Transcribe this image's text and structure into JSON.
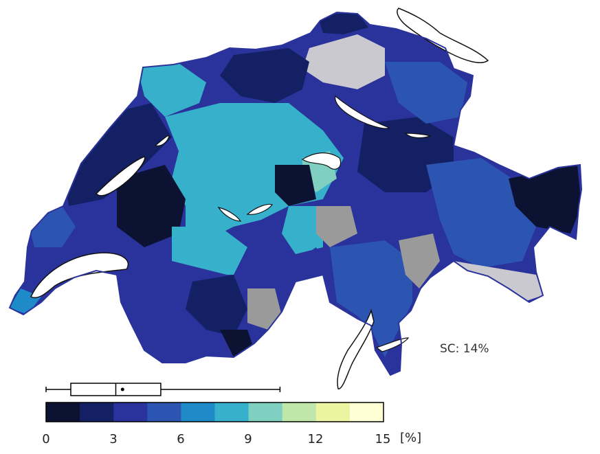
{
  "map": {
    "annotation": "SC: 14%",
    "legend": {
      "unit": "[%]",
      "ticks": [
        "0",
        "3",
        "6",
        "9",
        "12",
        "15"
      ],
      "min": 0,
      "max": 15,
      "bins": 10,
      "colors": [
        "#0c1232",
        "#142064",
        "#2a339c",
        "#2c55b2",
        "#1f8ac8",
        "#36b0cb",
        "#7fd0c0",
        "#bfe7a9",
        "#ebf4a0",
        "#ffffd5"
      ],
      "no_data_colors": [
        "#9a9a9a",
        "#c9c9cf"
      ]
    },
    "boxplot": {
      "whisker_low": 0,
      "q1": 1.1,
      "median": 3.1,
      "mean": 3.4,
      "q3": 5.1,
      "whisker_high": 10.4
    }
  }
}
